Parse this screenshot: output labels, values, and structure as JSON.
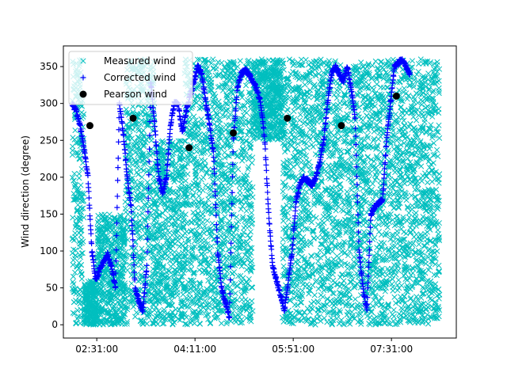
{
  "chart_data": {
    "type": "scatter",
    "title": "",
    "xlabel": "",
    "ylabel": "Wind direction (degree)",
    "x_range": [
      "01:57:00",
      "08:37:00"
    ],
    "ylim": [
      -18,
      378
    ],
    "x_ticks": [
      "02:31:00",
      "04:11:00",
      "05:51:00",
      "07:31:00"
    ],
    "y_ticks": [
      0,
      50,
      100,
      150,
      200,
      250,
      300,
      350
    ],
    "grid": false,
    "legend": {
      "placement": "top-left"
    },
    "series": [
      {
        "name": "Measured wind",
        "marker": "x",
        "color": "#00bfbf",
        "description_bands": [
          {
            "x": [
              "02:06:00",
              "02:18:00"
            ],
            "y": [
              0,
              360
            ]
          },
          {
            "x": [
              "02:18:00",
              "02:31:00"
            ],
            "y": [
              0,
              60
            ]
          },
          {
            "x": [
              "02:31:00",
              "03:00:00"
            ],
            "y": [
              0,
              150
            ]
          },
          {
            "x": [
              "03:00:00",
              "03:30:00"
            ],
            "y": [
              0,
              360
            ]
          },
          {
            "x": [
              "03:30:00",
              "04:00:00"
            ],
            "y": [
              0,
              250
            ]
          },
          {
            "x": [
              "04:00:00",
              "04:40:00"
            ],
            "y": [
              0,
              360
            ]
          },
          {
            "x": [
              "04:40:00",
              "05:10:00"
            ],
            "y": [
              0,
              360
            ]
          },
          {
            "x": [
              "05:10:00",
              "05:40:00"
            ],
            "y": [
              250,
              360
            ]
          },
          {
            "x": [
              "05:40:00",
              "06:20:00"
            ],
            "y": [
              0,
              360
            ]
          },
          {
            "x": [
              "06:20:00",
              "06:50:00"
            ],
            "y": [
              0,
              360
            ]
          },
          {
            "x": [
              "06:50:00",
              "07:20:00"
            ],
            "y": [
              0,
              360
            ]
          },
          {
            "x": [
              "07:20:00",
              "08:20:00"
            ],
            "y": [
              0,
              360
            ]
          }
        ]
      },
      {
        "name": "Corrected wind",
        "marker": "+",
        "color": "#0000ff",
        "x": [
          "02:06:00",
          "02:10:00",
          "02:14:00",
          "02:18:00",
          "02:22:00",
          "02:26:00",
          "02:30:00",
          "02:34:00",
          "02:38:00",
          "02:42:00",
          "02:46:00",
          "02:50:00",
          "02:54:00",
          "02:58:00",
          "03:02:00",
          "03:06:00",
          "03:10:00",
          "03:14:00",
          "03:18:00",
          "03:22:00",
          "03:26:00",
          "03:30:00",
          "03:34:00",
          "03:38:00",
          "03:42:00",
          "03:46:00",
          "03:50:00",
          "03:54:00",
          "03:58:00",
          "04:02:00",
          "04:06:00",
          "04:10:00",
          "04:14:00",
          "04:18:00",
          "04:22:00",
          "04:26:00",
          "04:30:00",
          "04:34:00",
          "04:38:00",
          "04:42:00",
          "04:46:00",
          "04:50:00",
          "04:54:00",
          "04:58:00",
          "05:02:00",
          "05:06:00",
          "05:10:00",
          "05:14:00",
          "05:18:00",
          "05:22:00",
          "05:26:00",
          "05:30:00",
          "05:34:00",
          "05:38:00",
          "05:42:00",
          "05:46:00",
          "05:50:00",
          "05:54:00",
          "05:58:00",
          "06:02:00",
          "06:06:00",
          "06:10:00",
          "06:14:00",
          "06:18:00",
          "06:22:00",
          "06:26:00",
          "06:30:00",
          "06:34:00",
          "06:38:00",
          "06:42:00",
          "06:46:00",
          "06:50:00",
          "06:54:00",
          "06:58:00",
          "07:02:00",
          "07:06:00",
          "07:10:00",
          "07:14:00",
          "07:18:00",
          "07:22:00",
          "07:26:00",
          "07:30:00",
          "07:34:00",
          "07:38:00",
          "07:42:00",
          "07:46:00",
          "07:50:00"
        ],
        "y": [
          300,
          290,
          270,
          240,
          200,
          100,
          60,
          75,
          85,
          95,
          80,
          50,
          300,
          260,
          200,
          160,
          50,
          30,
          20,
          80,
          330,
          270,
          200,
          180,
          200,
          270,
          300,
          300,
          260,
          290,
          310,
          330,
          350,
          340,
          300,
          270,
          230,
          100,
          50,
          30,
          10,
          250,
          320,
          340,
          345,
          340,
          330,
          320,
          300,
          250,
          150,
          80,
          60,
          40,
          20,
          60,
          100,
          170,
          190,
          200,
          195,
          190,
          200,
          220,
          250,
          300,
          340,
          350,
          340,
          330,
          350,
          320,
          280,
          100,
          50,
          20,
          150,
          160,
          165,
          170,
          250,
          300,
          350,
          355,
          360,
          350,
          340
        ]
      },
      {
        "name": "Pearson wind",
        "marker": "o",
        "color": "#000000",
        "x": [
          "02:24:00",
          "03:08:00",
          "04:05:00",
          "04:50:00",
          "05:45:00",
          "06:40:00",
          "07:36:00"
        ],
        "y": [
          270,
          280,
          240,
          260,
          280,
          270,
          310
        ]
      }
    ]
  }
}
